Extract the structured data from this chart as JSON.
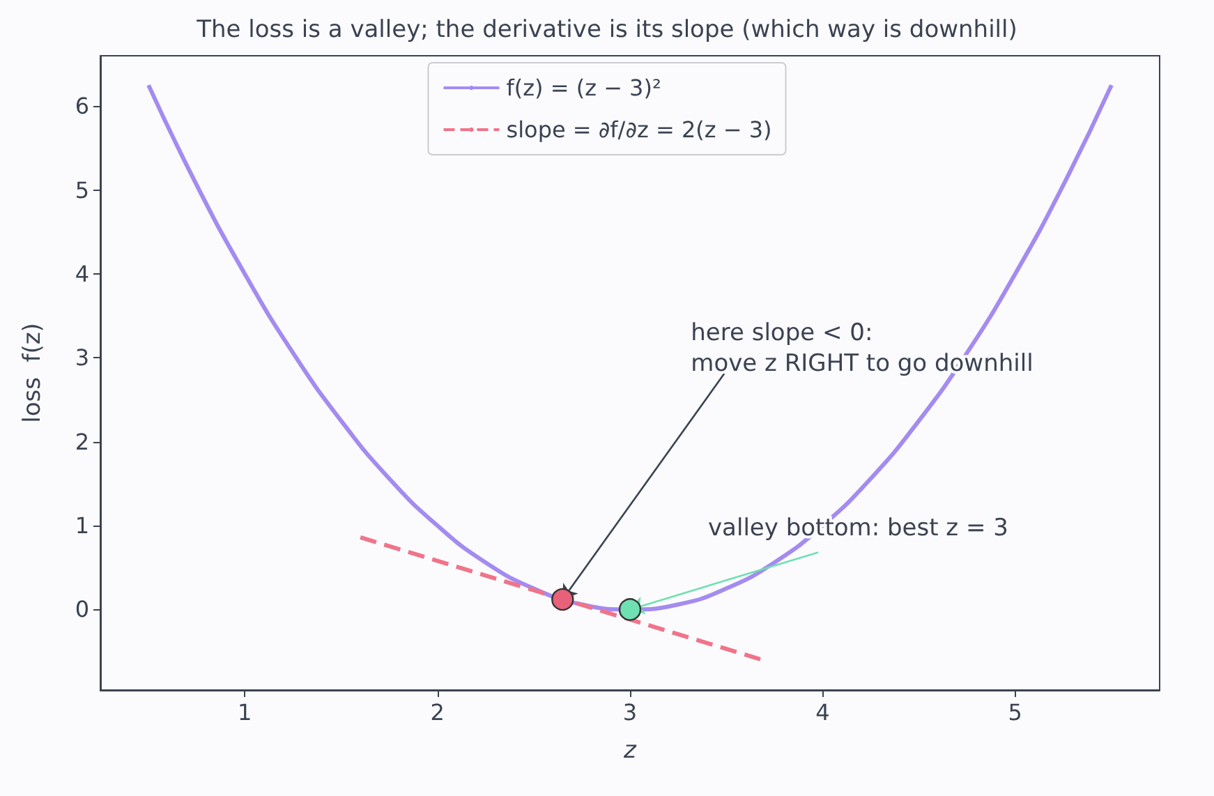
{
  "chart_data": {
    "type": "line",
    "title": "The loss is a valley; the derivative is its slope (which way is downhill)",
    "xlabel": "z",
    "ylabel": "loss  f(z)",
    "xlim": [
      0.25,
      5.75
    ],
    "xticks": [
      1,
      2,
      3,
      4,
      5
    ],
    "ylim": [
      -0.96,
      6.6
    ],
    "yticks": [
      0,
      1,
      2,
      3,
      4,
      5,
      6
    ],
    "grid": false,
    "legend": "top",
    "series": [
      {
        "name": "f(z) = (z − 3)²",
        "color": "#a48bf0",
        "line_style": "solid",
        "marker": "none",
        "x": [
          0.5,
          0.75,
          1,
          1.25,
          1.5,
          1.75,
          2,
          2.25,
          2.5,
          2.75,
          3,
          3.25,
          3.5,
          3.75,
          4,
          4.25,
          4.5,
          4.75,
          5,
          5.25,
          5.5
        ],
        "values": [
          6.25,
          5.06,
          4,
          3.06,
          2.25,
          1.56,
          1,
          0.56,
          0.25,
          0.06,
          0,
          0.06,
          0.25,
          0.56,
          1,
          1.56,
          2.25,
          3.06,
          4,
          5.06,
          6.25
        ]
      },
      {
        "name": "slope = ∂f/∂z = 2(z − 3)",
        "color": "#f07489",
        "line_style": "dashed",
        "marker": "none",
        "x": [
          1.6,
          3.7
        ],
        "values": [
          0.86,
          -0.61
        ]
      },
      {
        "type": "scatter",
        "color": "#e8617a",
        "marker": "circle",
        "x": [
          2.65
        ],
        "values": [
          0.12
        ]
      },
      {
        "type": "scatter",
        "color": "#6fe0b2",
        "marker": "circle",
        "x": [
          3
        ],
        "values": [
          0
        ]
      }
    ],
    "annotations": [
      {
        "text": "here slope < 0:\nmove z RIGHT to go downhill",
        "x": 2.65,
        "y": 0.12
      },
      {
        "text": "valley bottom: best z = 3",
        "x": 3,
        "y": 0
      }
    ]
  }
}
